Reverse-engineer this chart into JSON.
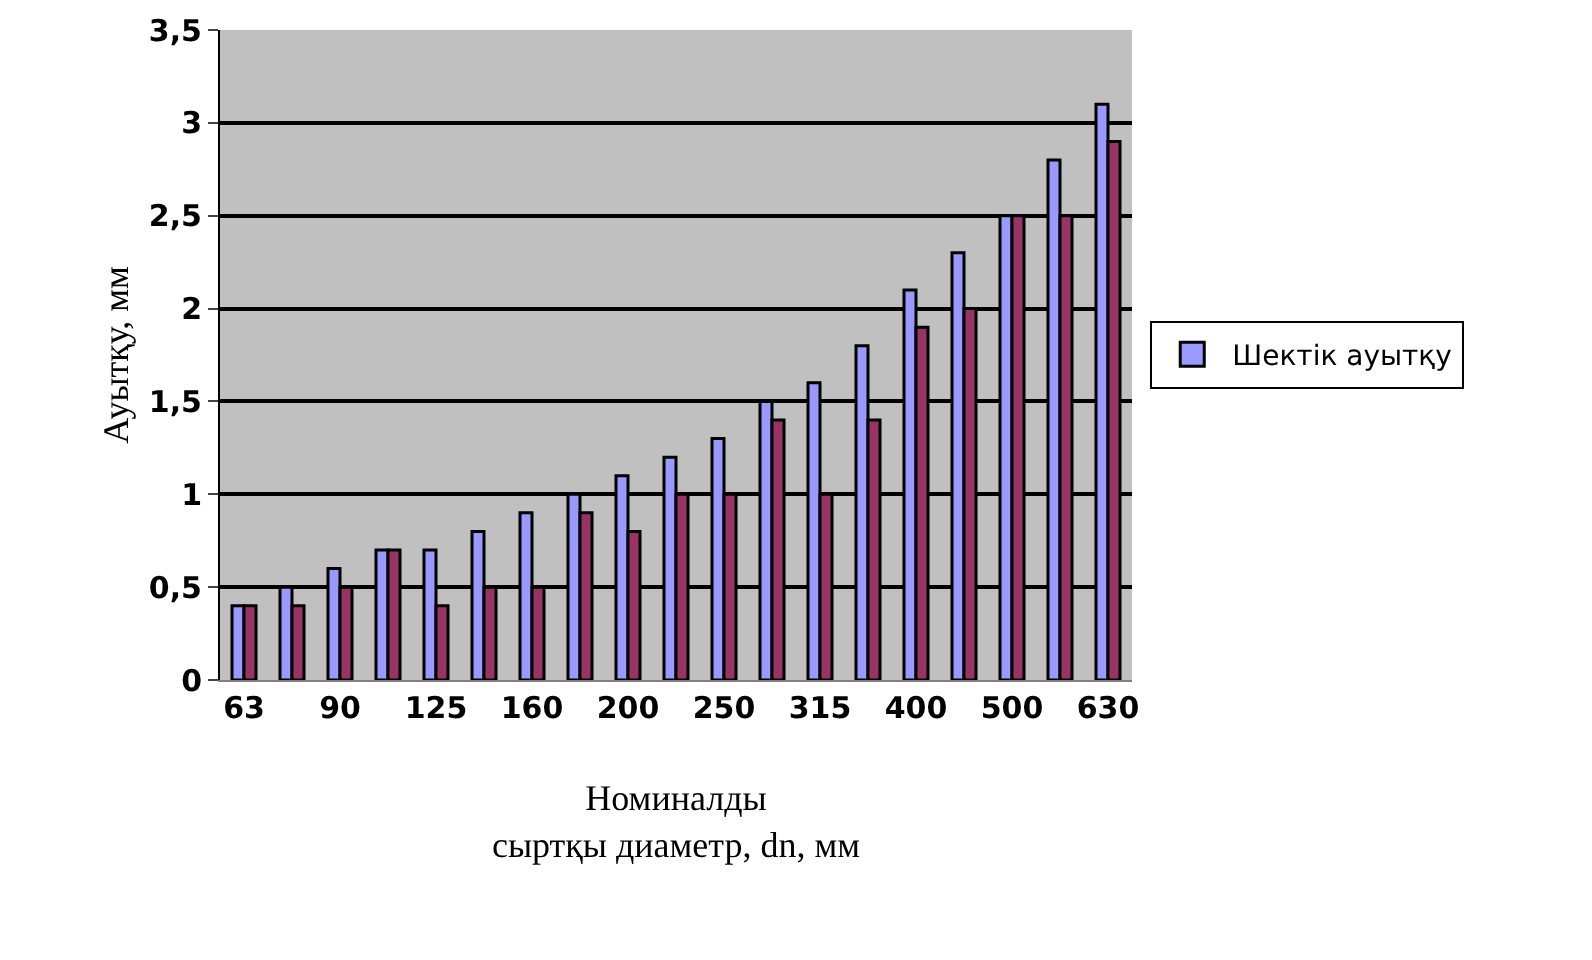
{
  "chart_data": {
    "type": "bar",
    "xlabel": "Номиналды\nсыртқы диаметр, dn, мм",
    "ylabel": "Ауытқу, мм",
    "categories": [
      "63",
      null,
      "90",
      null,
      "125",
      null,
      "160",
      null,
      "200",
      null,
      "250",
      null,
      "315",
      null,
      "400",
      null,
      "500",
      null,
      "630"
    ],
    "series": [
      {
        "name": "Шектік ауытқу",
        "color": "#9999ff",
        "values": [
          0.4,
          0.5,
          0.6,
          0.7,
          0.7,
          0.8,
          0.9,
          1.0,
          1.1,
          1.2,
          1.3,
          1.5,
          1.6,
          1.8,
          2.1,
          2.3,
          2.5,
          2.8,
          3.1
        ]
      },
      {
        "color": "#993366",
        "values": [
          0.4,
          0.4,
          0.5,
          0.7,
          0.4,
          0.5,
          0.5,
          0.9,
          0.8,
          1.0,
          1.0,
          1.4,
          1.0,
          1.4,
          1.9,
          2.0,
          2.5,
          2.5,
          2.9
        ]
      }
    ],
    "ylim": [
      0,
      3.5
    ],
    "yticks": [
      0,
      {
        "value": 0.5,
        "label": "0,5"
      },
      1,
      {
        "value": 1.5,
        "label": "1,5"
      },
      2,
      {
        "value": 2.5,
        "label": "2,5"
      },
      3,
      {
        "value": 3.5,
        "label": "3,5"
      }
    ],
    "grid": "y",
    "legend": "right"
  }
}
